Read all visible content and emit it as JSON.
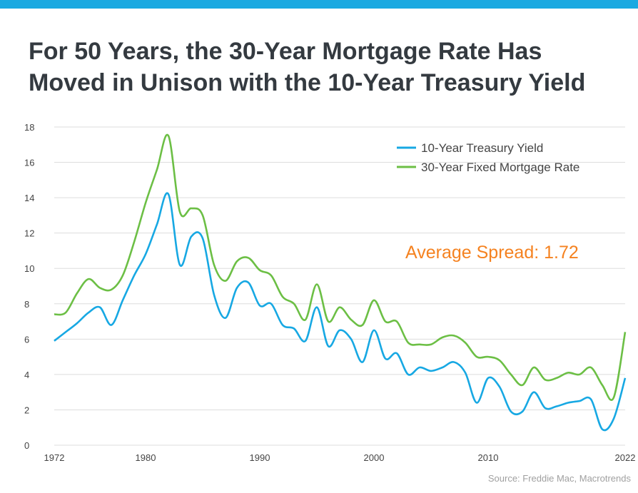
{
  "title_lines": [
    "For 50 Years, the 30-Year Mortgage Rate Has",
    "Moved in Unison with the 10-Year Treasury Yield"
  ],
  "source": "Source: Freddie Mac, Macrotrends",
  "colors": {
    "top_bar": "#1aa9e1",
    "title": "#343a40",
    "treasury": "#17a8e3",
    "mortgage": "#6cbf45",
    "annotation": "#f58220",
    "grid": "#dddddd"
  },
  "chart_data": {
    "type": "line",
    "title": "",
    "xlabel": "",
    "ylabel": "",
    "xlim": [
      1972,
      2022
    ],
    "ylim": [
      0,
      18
    ],
    "x_ticks": [
      1972,
      1980,
      1990,
      2000,
      2010,
      2022
    ],
    "x_tick_labels": [
      "1972",
      "1980",
      "1990",
      "2000",
      "2010",
      "2022"
    ],
    "y_ticks": [
      0,
      2,
      4,
      6,
      8,
      10,
      12,
      14,
      16,
      18
    ],
    "grid": true,
    "legend_position": "top-right",
    "annotation": "Average Spread: 1.72",
    "x": [
      1972,
      1973,
      1974,
      1975,
      1976,
      1977,
      1978,
      1979,
      1980,
      1981,
      1982,
      1983,
      1984,
      1985,
      1986,
      1987,
      1988,
      1989,
      1990,
      1991,
      1992,
      1993,
      1994,
      1995,
      1996,
      1997,
      1998,
      1999,
      2000,
      2001,
      2002,
      2003,
      2004,
      2005,
      2006,
      2007,
      2008,
      2009,
      2010,
      2011,
      2012,
      2013,
      2014,
      2015,
      2016,
      2017,
      2018,
      2019,
      2020,
      2021,
      2022
    ],
    "series": [
      {
        "name": "10-Year Treasury Yield",
        "values": [
          5.9,
          6.4,
          6.9,
          7.5,
          7.8,
          6.8,
          8.2,
          9.6,
          10.8,
          12.5,
          14.2,
          10.2,
          11.8,
          11.7,
          8.5,
          7.2,
          8.9,
          9.2,
          7.9,
          8.0,
          6.8,
          6.6,
          5.9,
          7.8,
          5.6,
          6.5,
          6.0,
          4.7,
          6.5,
          4.9,
          5.2,
          4.0,
          4.4,
          4.2,
          4.4,
          4.7,
          4.1,
          2.4,
          3.8,
          3.3,
          1.9,
          1.9,
          3.0,
          2.1,
          2.2,
          2.4,
          2.5,
          2.6,
          0.9,
          1.5,
          3.8
        ]
      },
      {
        "name": "30-Year Fixed Mortgage Rate",
        "values": [
          7.4,
          7.5,
          8.6,
          9.4,
          8.9,
          8.8,
          9.6,
          11.5,
          13.7,
          15.6,
          17.5,
          13.2,
          13.4,
          13.0,
          10.2,
          9.3,
          10.4,
          10.6,
          9.9,
          9.6,
          8.4,
          8.0,
          7.1,
          9.1,
          7.0,
          7.8,
          7.1,
          6.8,
          8.2,
          7.0,
          7.0,
          5.8,
          5.7,
          5.7,
          6.1,
          6.2,
          5.8,
          5.0,
          5.0,
          4.8,
          4.0,
          3.4,
          4.4,
          3.7,
          3.8,
          4.1,
          4.0,
          4.4,
          3.4,
          2.7,
          6.4
        ]
      }
    ]
  }
}
